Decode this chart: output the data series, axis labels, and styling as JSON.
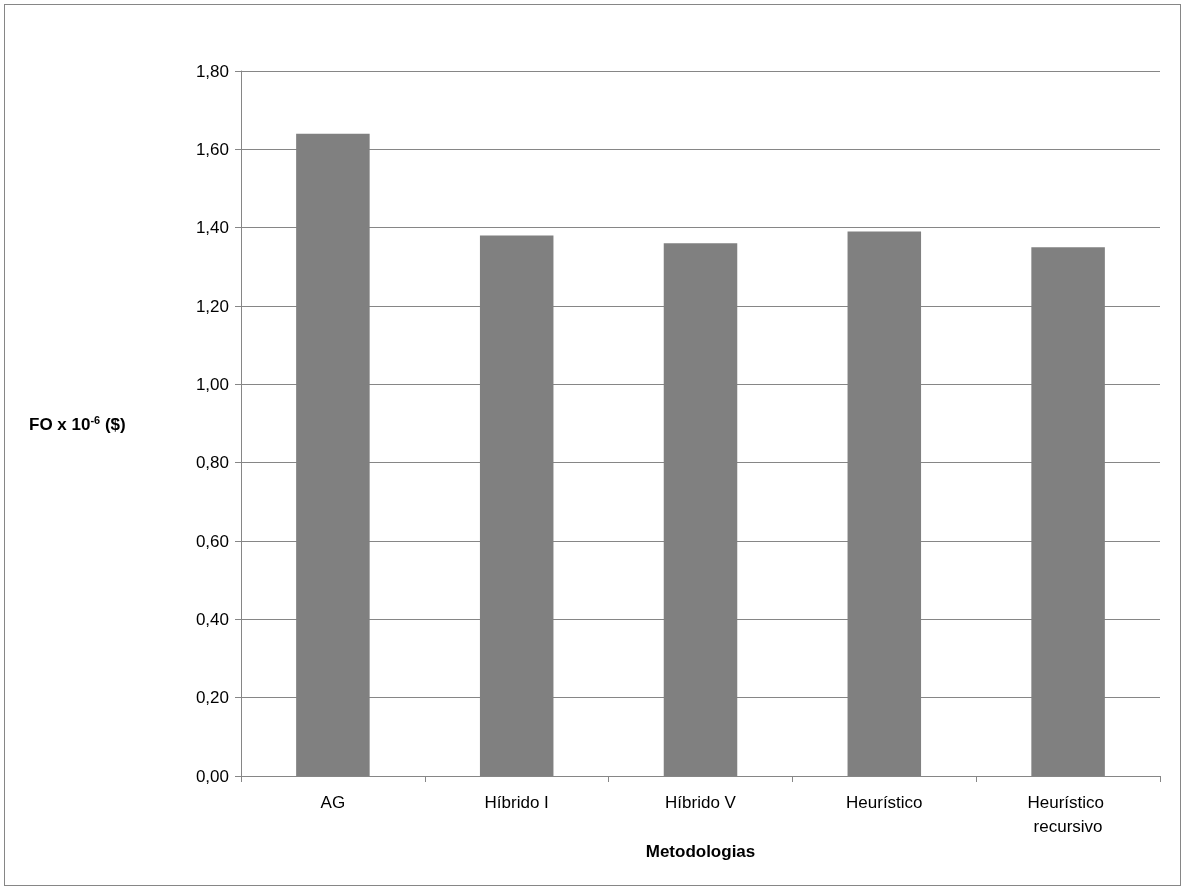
{
  "chart_data": {
    "type": "bar",
    "xlabel": "Metodologias",
    "ylabel": "FO x 10$^{-6}$ ($)",
    "categories": [
      "AG",
      "Híbrido I",
      "Híbrido V",
      "Heurístico",
      "Heurístico recursivo"
    ],
    "values": [
      1.64,
      1.38,
      1.36,
      1.39,
      1.35
    ],
    "color": "#808080",
    "ylim": [
      0,
      1.8
    ],
    "yticks": [
      {
        "value": 0,
        "label": "0,00"
      },
      {
        "value": 0.2,
        "label": "0,20"
      },
      {
        "value": 0.4,
        "label": "0,40"
      },
      {
        "value": 0.6,
        "label": "0,60"
      },
      {
        "value": 0.8,
        "label": "0,80"
      },
      {
        "value": 1,
        "label": "1,00"
      },
      {
        "value": 1.2,
        "label": "1,20"
      },
      {
        "value": 1.4,
        "label": "1,40"
      },
      {
        "value": 1.6,
        "label": "1,60"
      },
      {
        "value": 1.8,
        "label": "1,80"
      }
    ],
    "grid": "y"
  }
}
